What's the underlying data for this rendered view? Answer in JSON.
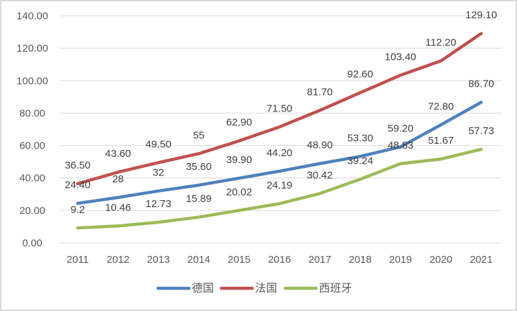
{
  "chart_data": {
    "type": "line",
    "title": "",
    "xlabel": "",
    "ylabel": "",
    "x_categories": [
      "2011",
      "2012",
      "2013",
      "2014",
      "2015",
      "2016",
      "2017",
      "2018",
      "2019",
      "2020",
      "2021"
    ],
    "series": [
      {
        "name": "德国",
        "slug": "germany",
        "color": "#4F81BD",
        "values": [
          24.4,
          28,
          32,
          35.6,
          39.9,
          44.2,
          48.9,
          53.3,
          59.2,
          72.8,
          86.7
        ],
        "labels": [
          "24.40",
          "28",
          "32",
          "35.60",
          "39.90",
          "44.20",
          "48.90",
          "53.30",
          "59.20",
          "72.80",
          "86.70"
        ]
      },
      {
        "name": "法国",
        "slug": "france",
        "color": "#C0504D",
        "values": [
          36.5,
          43.6,
          49.5,
          55,
          62.9,
          71.5,
          81.7,
          92.6,
          103.4,
          112.2,
          129.1
        ],
        "labels": [
          "36.50",
          "43.60",
          "49.50",
          "55",
          "62.90",
          "71.50",
          "81.70",
          "92.60",
          "103.40",
          "112.20",
          "129.10"
        ]
      },
      {
        "name": "西班牙",
        "slug": "spain",
        "color": "#9BBB59",
        "values": [
          9.2,
          10.46,
          12.73,
          15.89,
          20.02,
          24.19,
          30.42,
          39.24,
          48.83,
          51.67,
          57.73
        ],
        "labels": [
          "9.2",
          "10.46",
          "12.73",
          "15.89",
          "20.02",
          "24.19",
          "30.42",
          "39.24",
          "48.83",
          "51.67",
          "57.73"
        ]
      }
    ],
    "ylim": [
      0,
      140
    ],
    "y_tick_step": 20,
    "y_tick_labels": [
      "0.00",
      "20.00",
      "40.00",
      "60.00",
      "80.00",
      "100.00",
      "120.00",
      "140.00"
    ],
    "grid": true,
    "legend_position": "bottom",
    "legend_entries": [
      "德国",
      "法国",
      "西班牙"
    ],
    "colors": {
      "gridline": "#D9D9D9",
      "axis_text": "#595959",
      "data_label_text": "#3F3F3F",
      "legend_text": "#595959",
      "background": "#FFFFFF",
      "frame_border": "#D9D9D9"
    }
  }
}
